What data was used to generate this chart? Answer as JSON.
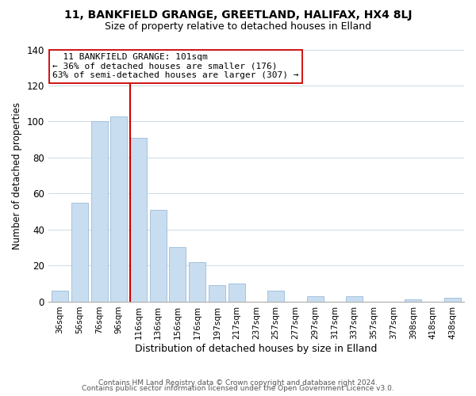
{
  "title1": "11, BANKFIELD GRANGE, GREETLAND, HALIFAX, HX4 8LJ",
  "title2": "Size of property relative to detached houses in Elland",
  "xlabel": "Distribution of detached houses by size in Elland",
  "ylabel": "Number of detached properties",
  "bar_labels": [
    "36sqm",
    "56sqm",
    "76sqm",
    "96sqm",
    "116sqm",
    "136sqm",
    "156sqm",
    "176sqm",
    "197sqm",
    "217sqm",
    "237sqm",
    "257sqm",
    "277sqm",
    "297sqm",
    "317sqm",
    "337sqm",
    "357sqm",
    "377sqm",
    "398sqm",
    "418sqm",
    "438sqm"
  ],
  "bar_values": [
    6,
    55,
    100,
    103,
    91,
    51,
    30,
    22,
    9,
    10,
    0,
    6,
    0,
    3,
    0,
    3,
    0,
    0,
    1,
    0,
    2
  ],
  "bar_color": "#c9ddf0",
  "bar_edge_color": "#9bbbd8",
  "highlight_color": "#cc0000",
  "vline_x_index": 4,
  "annotation_title": "11 BANKFIELD GRANGE: 101sqm",
  "annotation_line1": "← 36% of detached houses are smaller (176)",
  "annotation_line2": "63% of semi-detached houses are larger (307) →",
  "annotation_box_color": "#ffffff",
  "annotation_box_edge": "#cc0000",
  "ylim": [
    0,
    140
  ],
  "yticks": [
    0,
    20,
    40,
    60,
    80,
    100,
    120,
    140
  ],
  "footer1": "Contains HM Land Registry data © Crown copyright and database right 2024.",
  "footer2": "Contains public sector information licensed under the Open Government Licence v3.0."
}
